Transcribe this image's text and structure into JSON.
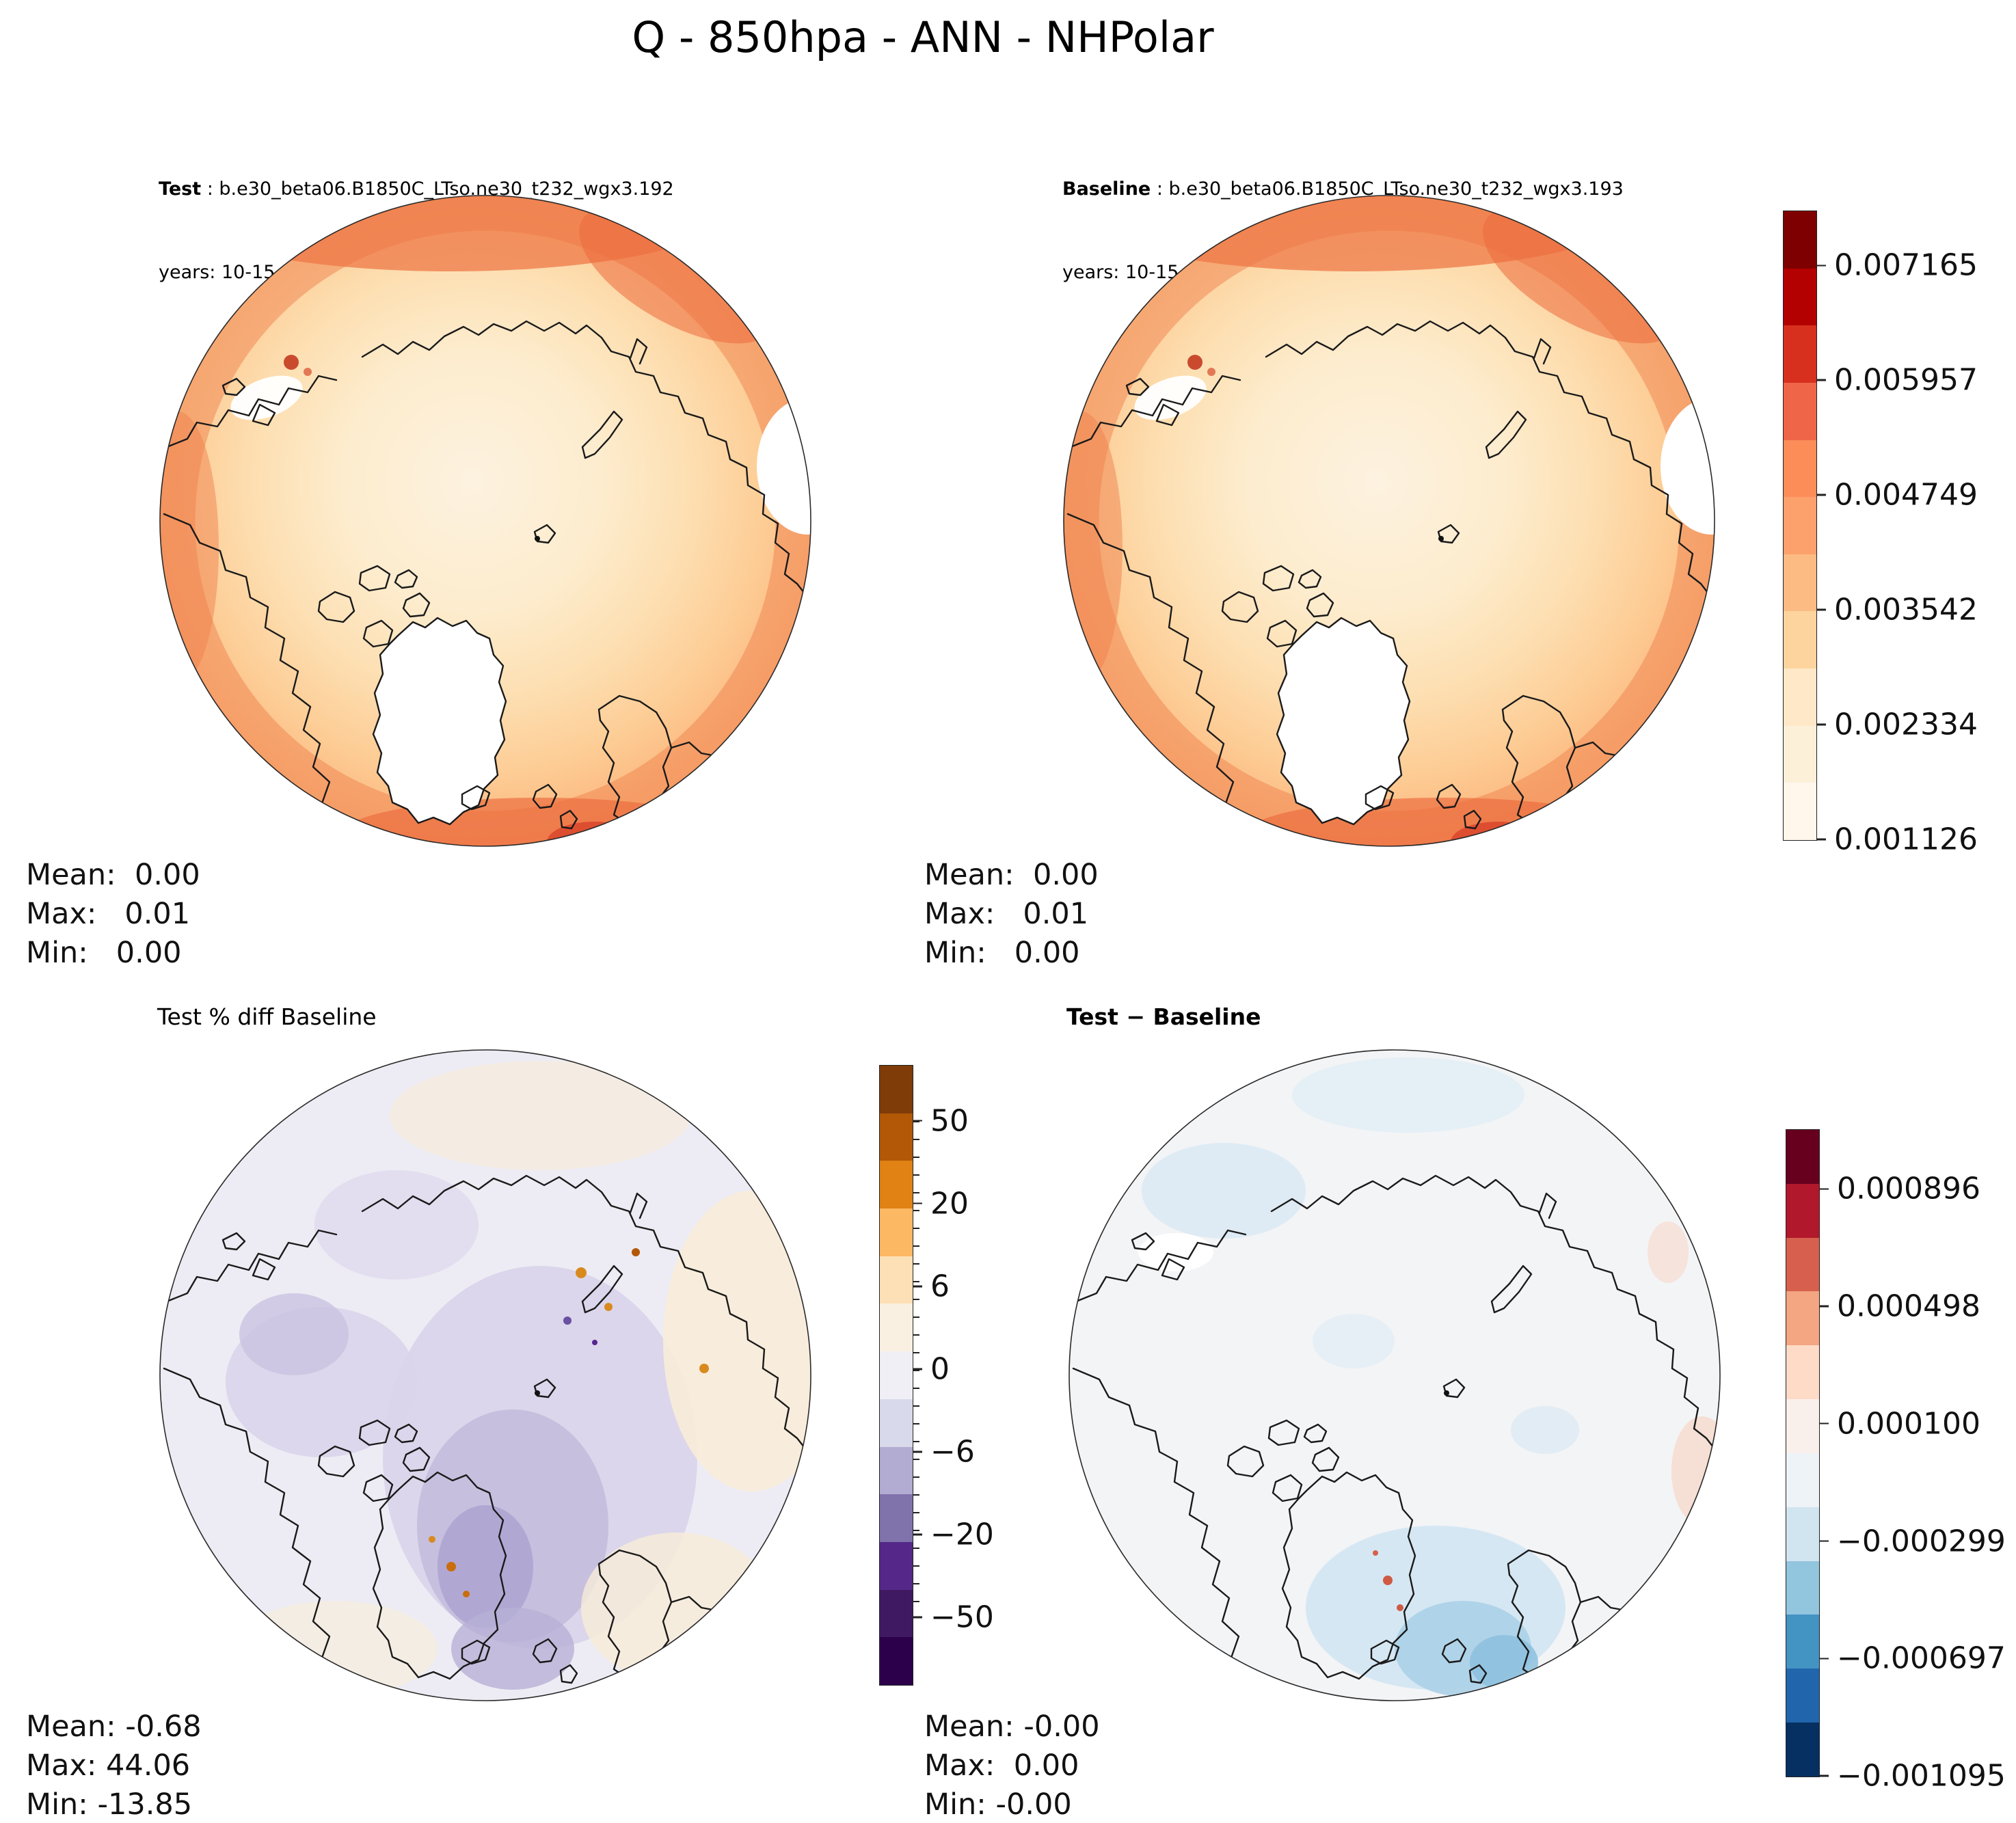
{
  "title": "Q - 850hpa - ANN - NHPolar",
  "panels": {
    "test": {
      "name": "Test",
      "run": " : b.e30_beta06.B1850C_LTso.ne30_t232_wgx3.192",
      "years": "years: 10-15",
      "stats": {
        "mean": "Mean:  0.00",
        "max": "Max:   0.01",
        "min": "Min:   0.00"
      }
    },
    "baseline": {
      "name": "Baseline",
      "run": " : b.e30_beta06.B1850C_LTso.ne30_t232_wgx3.193",
      "years": "years: 10-15",
      "stats": {
        "mean": "Mean:  0.00",
        "max": "Max:   0.01",
        "min": "Min:   0.00"
      }
    },
    "pct_diff": {
      "title": "Test % diff Baseline",
      "stats": {
        "mean": "Mean: -0.68",
        "max": "Max: 44.06",
        "min": "Min: -13.85"
      }
    },
    "diff": {
      "title": "Test − Baseline",
      "stats": {
        "mean": "Mean: -0.00",
        "max": "Max:  0.00",
        "min": "Min: -0.00"
      }
    }
  },
  "colorbars": {
    "main": {
      "ticks": [
        "0.007165",
        "0.005957",
        "0.004749",
        "0.003542",
        "0.002334",
        "0.001126"
      ],
      "colors": [
        "#7f0000",
        "#b30000",
        "#d7301f",
        "#ef6548",
        "#fc8d59",
        "#fca16b",
        "#fdbb84",
        "#fdd49e",
        "#fee8c8",
        "#fdf0d9",
        "#fff7ec"
      ]
    },
    "pct": {
      "ticks": [
        "50",
        "20",
        "6",
        "0",
        "−6",
        "−20",
        "−50"
      ],
      "colors": [
        "#7f3b08",
        "#b35806",
        "#e08214",
        "#fdb863",
        "#fee0b6",
        "#faf0e1",
        "#f0eff5",
        "#d8daeb",
        "#b2abd2",
        "#8073ac",
        "#542788",
        "#3f1a63",
        "#2d004b"
      ]
    },
    "diff": {
      "ticks": [
        "0.000896",
        "0.000498",
        "0.000100",
        "−0.000299",
        "−0.000697",
        "−0.001095"
      ],
      "colors": [
        "#67001f",
        "#b2182b",
        "#d6604d",
        "#f4a582",
        "#fddbc7",
        "#f9efeb",
        "#eef3f7",
        "#d1e5f0",
        "#92c5de",
        "#4393c3",
        "#2166ac",
        "#053061"
      ]
    }
  },
  "chart_data": [
    {
      "type": "heatmap",
      "panel": "top-left",
      "title": "Test : b.e30_beta06.B1850C_LTso.ne30_t232_wgx3.192",
      "subtitle": "years: 10-15",
      "colorbar_ticks": [
        0.007165,
        0.005957,
        0.004749,
        0.003542,
        0.002334,
        0.001126
      ],
      "colormap_colors": [
        "#7f0000",
        "#d7301f",
        "#fc8d59",
        "#fdbb84",
        "#fee8c8",
        "#fff7ec"
      ],
      "stats": {
        "mean": 0.0,
        "max": 0.01,
        "min": 0.0
      }
    },
    {
      "type": "heatmap",
      "panel": "top-right",
      "title": "Baseline : b.e30_beta06.B1850C_LTso.ne30_t232_wgx3.193",
      "subtitle": "years: 10-15",
      "colorbar_ticks": [
        0.007165,
        0.005957,
        0.004749,
        0.003542,
        0.002334,
        0.001126
      ],
      "colormap_colors": [
        "#7f0000",
        "#d7301f",
        "#fc8d59",
        "#fdbb84",
        "#fee8c8",
        "#fff7ec"
      ],
      "stats": {
        "mean": 0.0,
        "max": 0.01,
        "min": 0.0
      }
    },
    {
      "type": "heatmap",
      "panel": "bottom-left",
      "title": "Test % diff Baseline",
      "colorbar_ticks": [
        50,
        20,
        6,
        0,
        -6,
        -20,
        -50
      ],
      "colormap_colors": [
        "#7f3b08",
        "#e08214",
        "#fee0b6",
        "#f7f7f7",
        "#b2abd2",
        "#542788",
        "#2d004b"
      ],
      "stats": {
        "mean": -0.68,
        "max": 44.06,
        "min": -13.85
      }
    },
    {
      "type": "heatmap",
      "panel": "bottom-right",
      "title": "Test − Baseline",
      "colorbar_ticks": [
        0.000896,
        0.000498,
        0.0001,
        -0.000299,
        -0.000697,
        -0.001095
      ],
      "colormap_colors": [
        "#67001f",
        "#d6604d",
        "#fddbc7",
        "#f7f7f7",
        "#92c5de",
        "#2166ac",
        "#053061"
      ],
      "stats": {
        "mean": -0.0,
        "max": 0.0,
        "min": -0.0
      }
    }
  ]
}
